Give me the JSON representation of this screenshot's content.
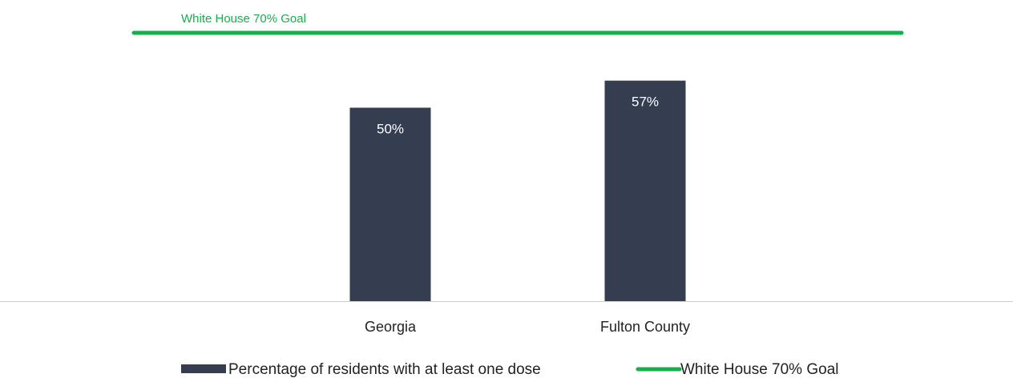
{
  "chart_data": {
    "type": "bar",
    "categories": [
      "Georgia",
      "Fulton County"
    ],
    "series": [
      {
        "name": "Percentage of residents with at least one dose",
        "values": [
          50,
          57
        ],
        "value_labels": [
          "50%",
          "57%"
        ],
        "color": "#343e50"
      }
    ],
    "reference_line": {
      "name": "White House 70% Goal",
      "label": "White House 70% Goal",
      "value": 70,
      "color": "#14b14b"
    },
    "ylim": [
      0,
      78
    ],
    "grid": false,
    "legend": "bottom",
    "label_color": "#ffffff",
    "text_color": "#222222",
    "axis_color": "#cccccc"
  }
}
